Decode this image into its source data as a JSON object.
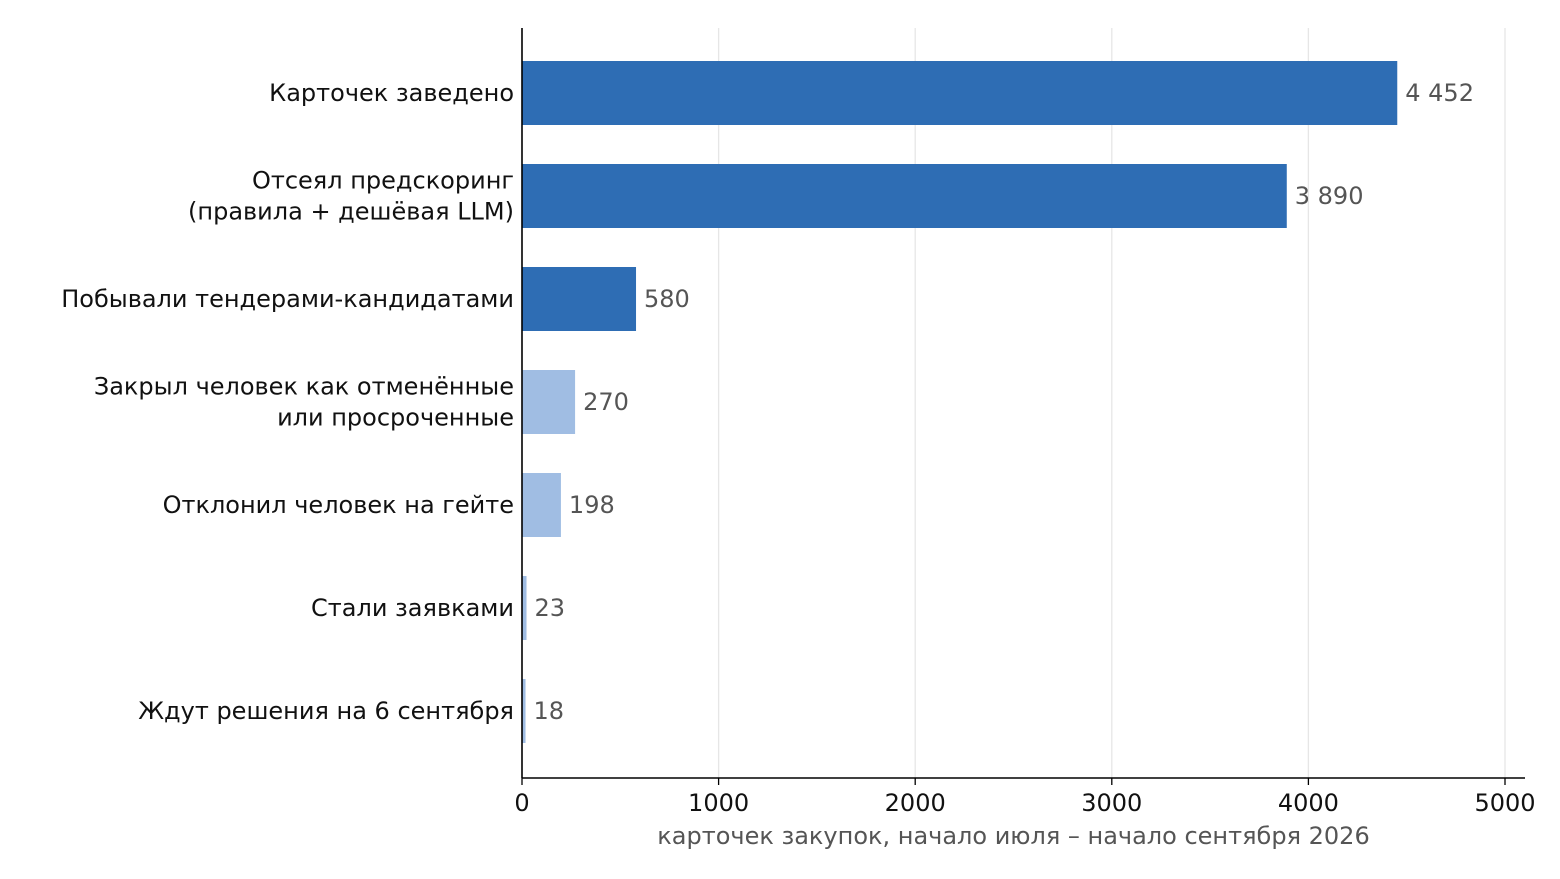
{
  "chart_data": {
    "type": "bar",
    "orientation": "horizontal",
    "categories": [
      [
        "Карточек заведено"
      ],
      [
        "Отсеял предскоринг",
        "(правила + дешёвая LLM)"
      ],
      [
        "Побывали тендерами-кандидатами"
      ],
      [
        "Закрыл человек как отменённые",
        "или просроченные"
      ],
      [
        "Отклонил человек на гейте"
      ],
      [
        "Стали заявками"
      ],
      [
        "Ждут решения на 6 сентября"
      ]
    ],
    "values": [
      4452,
      3890,
      580,
      270,
      198,
      23,
      18
    ],
    "value_labels": [
      "4 452",
      "3 890",
      "580",
      "270",
      "198",
      "23",
      "18"
    ],
    "bar_colors": [
      "#2e6db4",
      "#2e6db4",
      "#2e6db4",
      "#a0bde3",
      "#a0bde3",
      "#a0bde3",
      "#a0bde3"
    ],
    "xlabel": "карточек закупок, начало июля – начало сентября 2026",
    "xlim": [
      0,
      5000
    ],
    "xticks": [
      0,
      1000,
      2000,
      3000,
      4000,
      5000
    ],
    "grid": "vertical",
    "title": ""
  }
}
